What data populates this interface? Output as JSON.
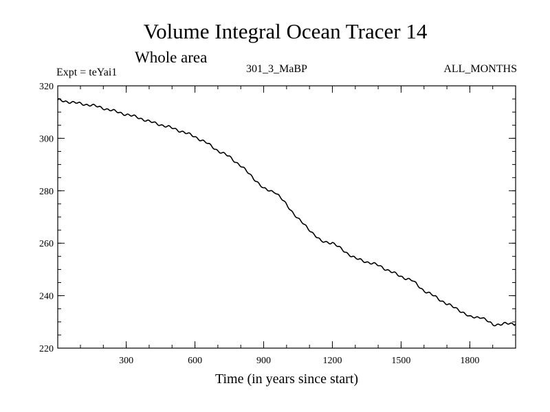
{
  "chart_data": {
    "type": "line",
    "title": "Volume Integral Ocean Tracer 14",
    "subtitle": "Whole area",
    "experiment": "Expt = teYai1",
    "run_label": "301_3_MaBP",
    "months_label": "ALL_MONTHS",
    "xlabel": "Time (in years since start)",
    "ylabel": "",
    "xlim": [
      1,
      2000
    ],
    "ylim": [
      220,
      320
    ],
    "xticks": [
      300,
      600,
      900,
      1200,
      1500,
      1800
    ],
    "yticks": [
      220,
      240,
      260,
      280,
      300,
      320
    ],
    "x_minor_step": 100,
    "y_minor_step": 5,
    "series": [
      {
        "name": "Ocean Tracer 14",
        "x": [
          1,
          50,
          100,
          150,
          200,
          250,
          300,
          350,
          400,
          450,
          500,
          550,
          600,
          650,
          700,
          750,
          800,
          850,
          900,
          950,
          1000,
          1050,
          1100,
          1150,
          1200,
          1250,
          1300,
          1350,
          1400,
          1450,
          1500,
          1550,
          1600,
          1650,
          1700,
          1750,
          1800,
          1850,
          1900,
          1950,
          2000
        ],
        "values": [
          314.6,
          313.9,
          313.2,
          312.6,
          311.5,
          310.3,
          309.1,
          308.0,
          306.4,
          305.2,
          303.9,
          302.4,
          300.6,
          298.3,
          295.3,
          293.0,
          289.5,
          285.4,
          280.7,
          279.6,
          274.7,
          269.3,
          265.2,
          260.7,
          260.2,
          257.1,
          254.2,
          252.9,
          251.6,
          249.4,
          247.3,
          245.7,
          241.9,
          239.6,
          236.8,
          234.8,
          231.8,
          231.9,
          228.9,
          229.3,
          229.2
        ]
      }
    ]
  }
}
